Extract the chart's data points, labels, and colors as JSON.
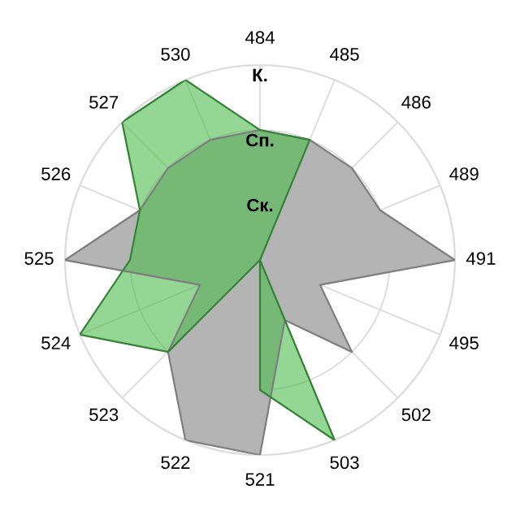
{
  "chart_data": {
    "type": "radar",
    "categories": [
      "484",
      "485",
      "486",
      "489",
      "491",
      "495",
      "502",
      "503",
      "521",
      "522",
      "523",
      "524",
      "525",
      "526",
      "527",
      "530"
    ],
    "series": [
      {
        "color": "#b4b4b4",
        "values": [
          2,
          2,
          2,
          2,
          3,
          1,
          2,
          1,
          3,
          3,
          2,
          1,
          3,
          2,
          2,
          2
        ]
      },
      {
        "color": "#4cbb4c",
        "values": [
          2,
          2,
          0,
          0,
          0,
          0,
          0,
          3,
          2,
          0,
          2,
          3,
          2,
          2,
          3,
          3
        ]
      }
    ],
    "ylim": [
      0,
      3
    ],
    "yticks": [
      {
        "value": 1,
        "label": "Ск."
      },
      {
        "value": 2,
        "label": "Сп."
      },
      {
        "value": 3,
        "label": "К."
      }
    ],
    "grid": true
  }
}
